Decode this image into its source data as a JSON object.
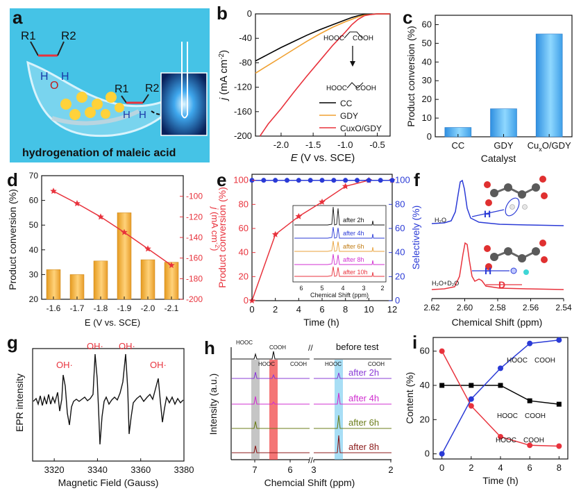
{
  "figure": {
    "panel_letters": [
      "a",
      "b",
      "c",
      "d",
      "e",
      "f",
      "g",
      "h",
      "i"
    ],
    "colors": {
      "black": "#000000",
      "orange": "#f0a030",
      "red": "#e8323c",
      "blue": "#2a3ad6",
      "bar_blue": "#56b6f2",
      "bar_orange": "#f2ad3a",
      "panel_a_bg": "#40c4e8",
      "h_grey": "#9e9e9e",
      "h_red": "#f04848",
      "h_blue": "#6ec8ee",
      "h_purple": "#8a3bd6",
      "h_magenta": "#d02fd0",
      "h_olive": "#6b7d1a",
      "h_maroon": "#8b1a1a"
    }
  },
  "panel_a": {
    "caption": "hydrogenation of maleic acid",
    "labels": [
      "R1",
      "R2",
      "H",
      "O",
      "H",
      "R1",
      "R2",
      "H",
      "H"
    ]
  },
  "panel_b": {
    "legend": [
      "CC",
      "GDY",
      "CuxO/GDY"
    ],
    "molecule_top": "HOOC      COOH",
    "molecule_bottom": "HOOC      COOH"
  },
  "panel_c": {},
  "panel_d": {},
  "panel_e": {
    "inset_labels": [
      "after 2h",
      "after 4h",
      "after 6h",
      "after 8h",
      "after 10h"
    ],
    "inset_ticks": [
      "6",
      "5",
      "4",
      "3",
      "2"
    ],
    "inset_xlabel": "Chemical Shift (ppm)"
  },
  "panel_f": {
    "trace_labels": [
      "H₂O",
      "H₂O+D₂O"
    ],
    "annotations": [
      "H",
      "H",
      "D"
    ]
  },
  "panel_g": {
    "peak_labels": [
      "OH·",
      "OH·",
      "OH·",
      "OH·"
    ]
  },
  "panel_h": {
    "trace_labels": [
      "before test",
      "after 2h",
      "after 4h",
      "after 6h",
      "after 8h"
    ],
    "molecules": [
      "HOOC",
      "COOH",
      "HOOC",
      "COOH",
      "HOOC",
      "COOH"
    ]
  },
  "panel_i": {
    "molecules": [
      "HOOC     COOH",
      "HOOC     COOH",
      "HOOC     COOH"
    ]
  },
  "chart_data": [
    {
      "panel": "b",
      "type": "line",
      "xlabel": "E (V vs. SCE)",
      "ylabel": "j (mA cm⁻²)",
      "xlim": [
        -2.4,
        -0.3
      ],
      "ylim": [
        -200,
        0
      ],
      "xticks": [
        "-2.0",
        "-1.5",
        "-1.0",
        "-0.5"
      ],
      "yticks": [
        "0",
        "-40",
        "-80",
        "-120",
        "-160",
        "-200"
      ],
      "series": [
        {
          "name": "CC",
          "color": "#000000",
          "x": [
            -2.4,
            -2.2,
            -2.0,
            -1.8,
            -1.6,
            -1.4,
            -1.2,
            -1.0,
            -0.9,
            -0.8,
            -0.7,
            -0.5,
            -0.3
          ],
          "y": [
            -77,
            -66,
            -55,
            -45,
            -35,
            -26,
            -18,
            -10,
            -6,
            -3,
            -1,
            0,
            0
          ]
        },
        {
          "name": "GDY",
          "color": "#f0a030",
          "x": [
            -2.4,
            -2.2,
            -2.0,
            -1.8,
            -1.6,
            -1.4,
            -1.2,
            -1.0,
            -0.9,
            -0.8,
            -0.7,
            -0.5,
            -0.3
          ],
          "y": [
            -97,
            -84,
            -71,
            -58,
            -45,
            -33,
            -22,
            -13,
            -9,
            -5,
            -2,
            0,
            0
          ]
        },
        {
          "name": "CuxO/GDY",
          "color": "#e8323c",
          "x": [
            -2.33,
            -2.2,
            -2.0,
            -1.8,
            -1.6,
            -1.4,
            -1.2,
            -1.0,
            -0.9,
            -0.8,
            -0.7,
            -0.6,
            -0.5,
            -0.3
          ],
          "y": [
            -200,
            -180,
            -155,
            -128,
            -102,
            -77,
            -52,
            -30,
            -18,
            -9,
            -3,
            -1,
            0,
            0
          ]
        }
      ]
    },
    {
      "panel": "c",
      "type": "bar",
      "xlabel": "Catalyst",
      "ylabel": "Product conversion (%)",
      "categories": [
        "CC",
        "GDY",
        "CuxO/GDY"
      ],
      "values": [
        5,
        15,
        55
      ],
      "ylim": [
        0,
        65
      ],
      "yticks": [
        "0",
        "10",
        "20",
        "30",
        "40",
        "50",
        "60"
      ]
    },
    {
      "panel": "d",
      "type": "bar",
      "xlabel": "E (V vs. SCE)",
      "ylabel": "Product conversion (%)",
      "ylabel_right": "j (mA cm⁻²)",
      "categories": [
        "-1.6",
        "-1.7",
        "-1.8",
        "-1.9",
        "-2.0",
        "-2.1"
      ],
      "values": [
        32,
        30,
        35.5,
        55,
        36,
        35
      ],
      "ylim": [
        20,
        70
      ],
      "yticks": [
        "20",
        "30",
        "40",
        "50",
        "60",
        "70"
      ],
      "ylim_right": [
        -200,
        -80
      ],
      "yticks_right": [
        "-100",
        "-120",
        "-140",
        "-160",
        "-180",
        "-200"
      ],
      "series": [
        {
          "name": "j",
          "color": "#e8323c",
          "y_right": [
            -95,
            -107,
            -120,
            -135,
            -151,
            -167
          ]
        }
      ]
    },
    {
      "panel": "e",
      "type": "line",
      "xlabel": "Time (h)",
      "ylabel": "Product conversion (%)",
      "ylabel_right": "Selectively (%)",
      "xlim": [
        0,
        12
      ],
      "ylim": [
        0,
        105
      ],
      "xticks": [
        "0",
        "2",
        "4",
        "6",
        "8",
        "10",
        "12"
      ],
      "yticks": [
        "0",
        "20",
        "40",
        "60",
        "80",
        "100"
      ],
      "yticks_right": [
        "0",
        "20",
        "40",
        "60",
        "80",
        "100"
      ],
      "series": [
        {
          "name": "Product conversion",
          "color": "#e8323c",
          "x": [
            0,
            2,
            4,
            6,
            8,
            10,
            12
          ],
          "y": [
            0,
            55,
            70,
            82,
            95,
            100,
            100
          ]
        },
        {
          "name": "Selectively",
          "color": "#2a3ad6",
          "x": [
            0,
            1,
            2,
            3,
            4,
            5,
            6,
            7,
            8,
            9,
            10,
            11,
            12
          ],
          "y": [
            100,
            100,
            100,
            100,
            100,
            100,
            100,
            100,
            100,
            100,
            100,
            100,
            100
          ]
        }
      ]
    },
    {
      "panel": "f",
      "type": "line",
      "xlabel": "Chemical Shift (ppm)",
      "xlim": [
        2.62,
        2.54
      ],
      "xticks": [
        "2.62",
        "2.60",
        "2.58",
        "2.56",
        "2.54"
      ]
    },
    {
      "panel": "g",
      "type": "line",
      "xlabel": "Magnetic Field (Gauss)",
      "ylabel": "EPR intensity",
      "xlim": [
        3310,
        3380
      ],
      "xticks": [
        "3320",
        "3340",
        "3360",
        "3380"
      ]
    },
    {
      "panel": "h",
      "type": "line",
      "xlabel": "Chemcial Shift (ppm)",
      "ylabel": "Intensity (a.u.)",
      "xticks": [
        "7",
        "6",
        "3",
        "2"
      ]
    },
    {
      "panel": "i",
      "type": "line",
      "xlabel": "Time (h)",
      "ylabel": "Content (%)",
      "xlim": [
        -0.6,
        8.6
      ],
      "ylim": [
        -3,
        68
      ],
      "xticks": [
        "0",
        "2",
        "4",
        "6",
        "8"
      ],
      "yticks": [
        "0",
        "20",
        "40",
        "60"
      ],
      "series": [
        {
          "color": "#000000",
          "x": [
            0,
            2,
            4,
            6,
            8
          ],
          "y": [
            40,
            40,
            40,
            31,
            29
          ]
        },
        {
          "color": "#e8323c",
          "x": [
            0,
            2,
            4,
            6,
            8
          ],
          "y": [
            60,
            28,
            10,
            5,
            4.5
          ]
        },
        {
          "color": "#2a3ad6",
          "x": [
            0,
            2,
            4,
            6,
            8
          ],
          "y": [
            0,
            32,
            50,
            64.5,
            66.5
          ]
        }
      ]
    }
  ]
}
